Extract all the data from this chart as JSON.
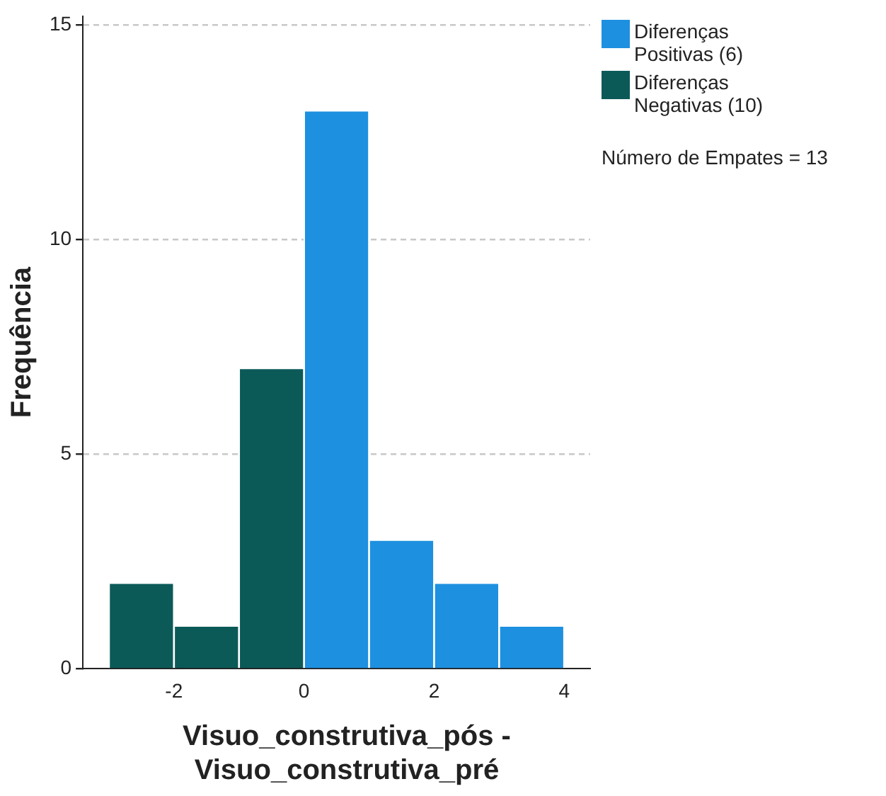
{
  "chart_data": {
    "type": "histogram",
    "xlabel": "Visuo_construtiva_pós - Visuo_construtiva_pré",
    "ylabel": "Frequência",
    "bins": [
      -3,
      -2,
      -1,
      0,
      1,
      2,
      3,
      4
    ],
    "series": [
      {
        "name": "Diferenças Positivas (6)",
        "color": "#1e90e0",
        "values": [
          null,
          null,
          null,
          13,
          3,
          2,
          1
        ]
      },
      {
        "name": "Diferenças Negativas (10)",
        "color": "#0b5a58",
        "values": [
          2,
          1,
          7,
          null,
          null,
          null,
          null
        ]
      }
    ],
    "xlim": [
      -3.4,
      4.4
    ],
    "xticks": [
      -2,
      0,
      2,
      4
    ],
    "ylim": [
      0,
      15.2
    ],
    "yticks": [
      0,
      5,
      10,
      15
    ],
    "grid": "y",
    "legend": "right",
    "annotations": [
      "Número de Empates = 13"
    ]
  }
}
